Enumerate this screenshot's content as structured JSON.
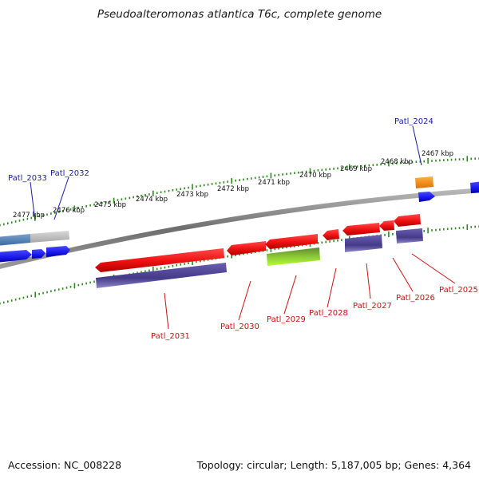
{
  "title": "Pseudoalteromonas atlantica T6c, complete genome",
  "footer": {
    "accession": "Accession: NC_008228",
    "summary": "Topology: circular; Length: 5,187,005 bp; Genes: 4,364"
  },
  "colors": {
    "forward_gene": "#1a1aff",
    "reverse_gene": "#ff1a1a",
    "reverse_rna": "#4b3f8f",
    "highlight_gene": "#88d020",
    "orange_gene": "#ff8a00",
    "tick": "#2a8a1a",
    "backbone": "#7a7a7a",
    "label_forward": "#1a1aaa",
    "label_reverse": "#cc1111"
  },
  "scale": {
    "unit": "kbp",
    "ticks": [
      "2477 kbp",
      "2476 kbp",
      "2475 kbp",
      "2474 kbp",
      "2473 kbp",
      "2472 kbp",
      "2471 kbp",
      "2470 kbp",
      "2469 kbp",
      "2468 kbp",
      "2467 kbp"
    ]
  },
  "genes": {
    "forward": [
      "Patl_2033",
      "Patl_2032",
      "Patl_2024"
    ],
    "reverse": [
      "Patl_2031",
      "Patl_2030",
      "Patl_2029",
      "Patl_2028",
      "Patl_2027",
      "Patl_2026",
      "Patl_2025"
    ]
  }
}
